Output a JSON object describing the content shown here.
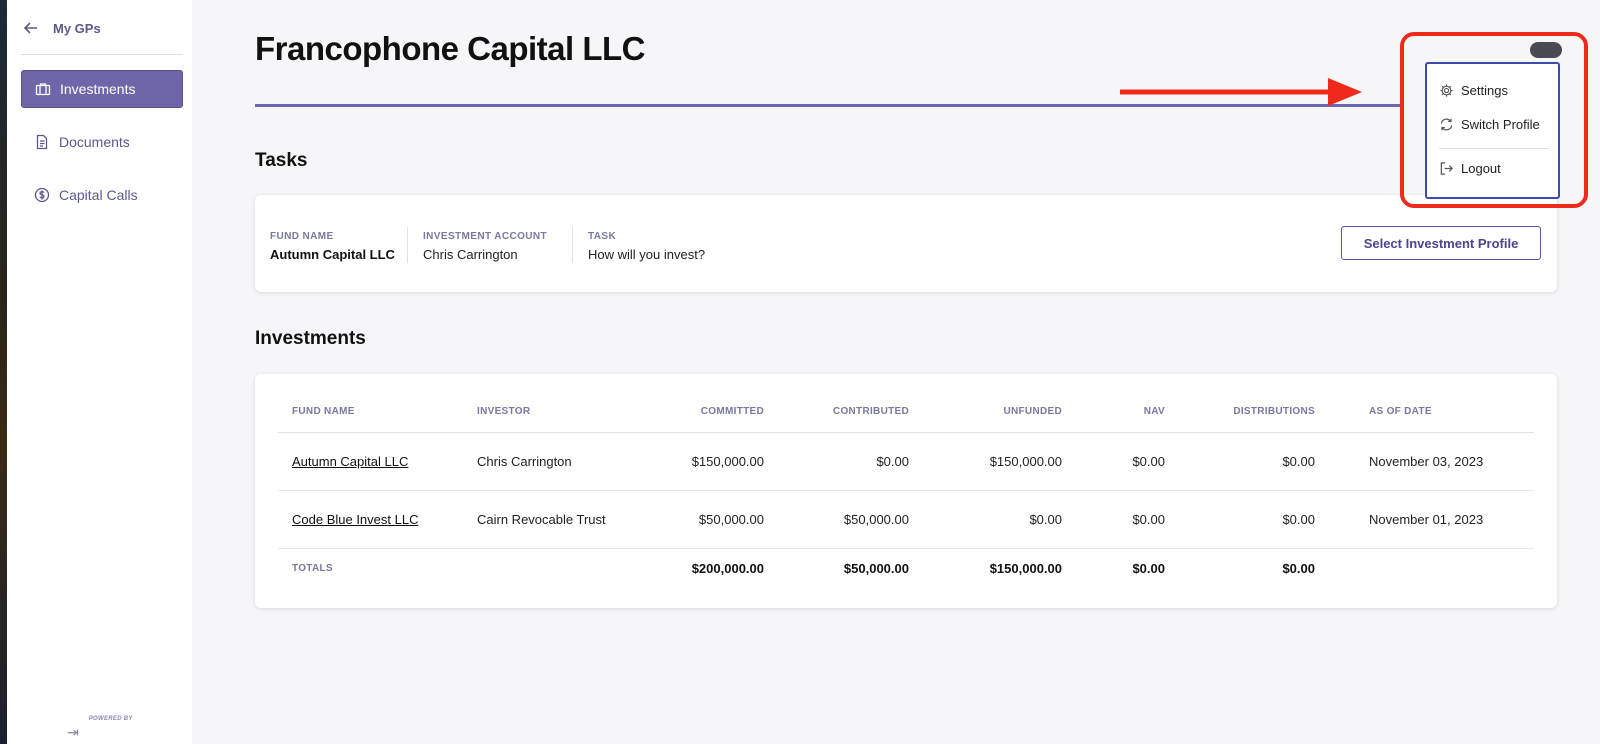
{
  "sidebar": {
    "back_label": "My GPs",
    "items": [
      {
        "label": "Investments",
        "icon": "briefcase-icon",
        "active": true
      },
      {
        "label": "Documents",
        "icon": "document-icon",
        "active": false
      },
      {
        "label": "Capital Calls",
        "icon": "dollar-circle-icon",
        "active": false
      }
    ],
    "powered_by": "POWERED BY"
  },
  "page": {
    "title": "Francophone Capital LLC"
  },
  "tasks": {
    "section_title": "Tasks",
    "fund_name_label": "FUND NAME",
    "fund_name": "Autumn Capital LLC",
    "account_label": "INVESTMENT ACCOUNT",
    "account": "Chris Carrington",
    "task_label": "TASK",
    "task": "How will you invest?",
    "action_label": "Select Investment Profile"
  },
  "investments": {
    "section_title": "Investments",
    "columns": [
      "FUND NAME",
      "INVESTOR",
      "COMMITTED",
      "CONTRIBUTED",
      "UNFUNDED",
      "NAV",
      "DISTRIBUTIONS",
      "AS OF DATE"
    ],
    "rows": [
      [
        "Autumn Capital LLC",
        "Chris Carrington",
        "$150,000.00",
        "$0.00",
        "$150,000.00",
        "$0.00",
        "$0.00",
        "November 03, 2023"
      ],
      [
        "Code Blue Invest LLC",
        "Cairn Revocable Trust",
        "$50,000.00",
        "$50,000.00",
        "$0.00",
        "$0.00",
        "$0.00",
        "November 01, 2023"
      ]
    ],
    "totals": {
      "label": "TOTALS",
      "committed": "$200,000.00",
      "contributed": "$50,000.00",
      "unfunded": "$150,000.00",
      "nav": "$0.00",
      "distributions": "$0.00"
    }
  },
  "user_menu": {
    "items": [
      {
        "label": "Settings",
        "icon": "gear-icon"
      },
      {
        "label": "Switch Profile",
        "icon": "refresh-icon"
      },
      {
        "label": "Logout",
        "icon": "logout-icon"
      }
    ]
  },
  "colors": {
    "accent": "#6e66a8",
    "annotation": "#f02a1a",
    "dropdown_border": "#3d4ab0"
  }
}
